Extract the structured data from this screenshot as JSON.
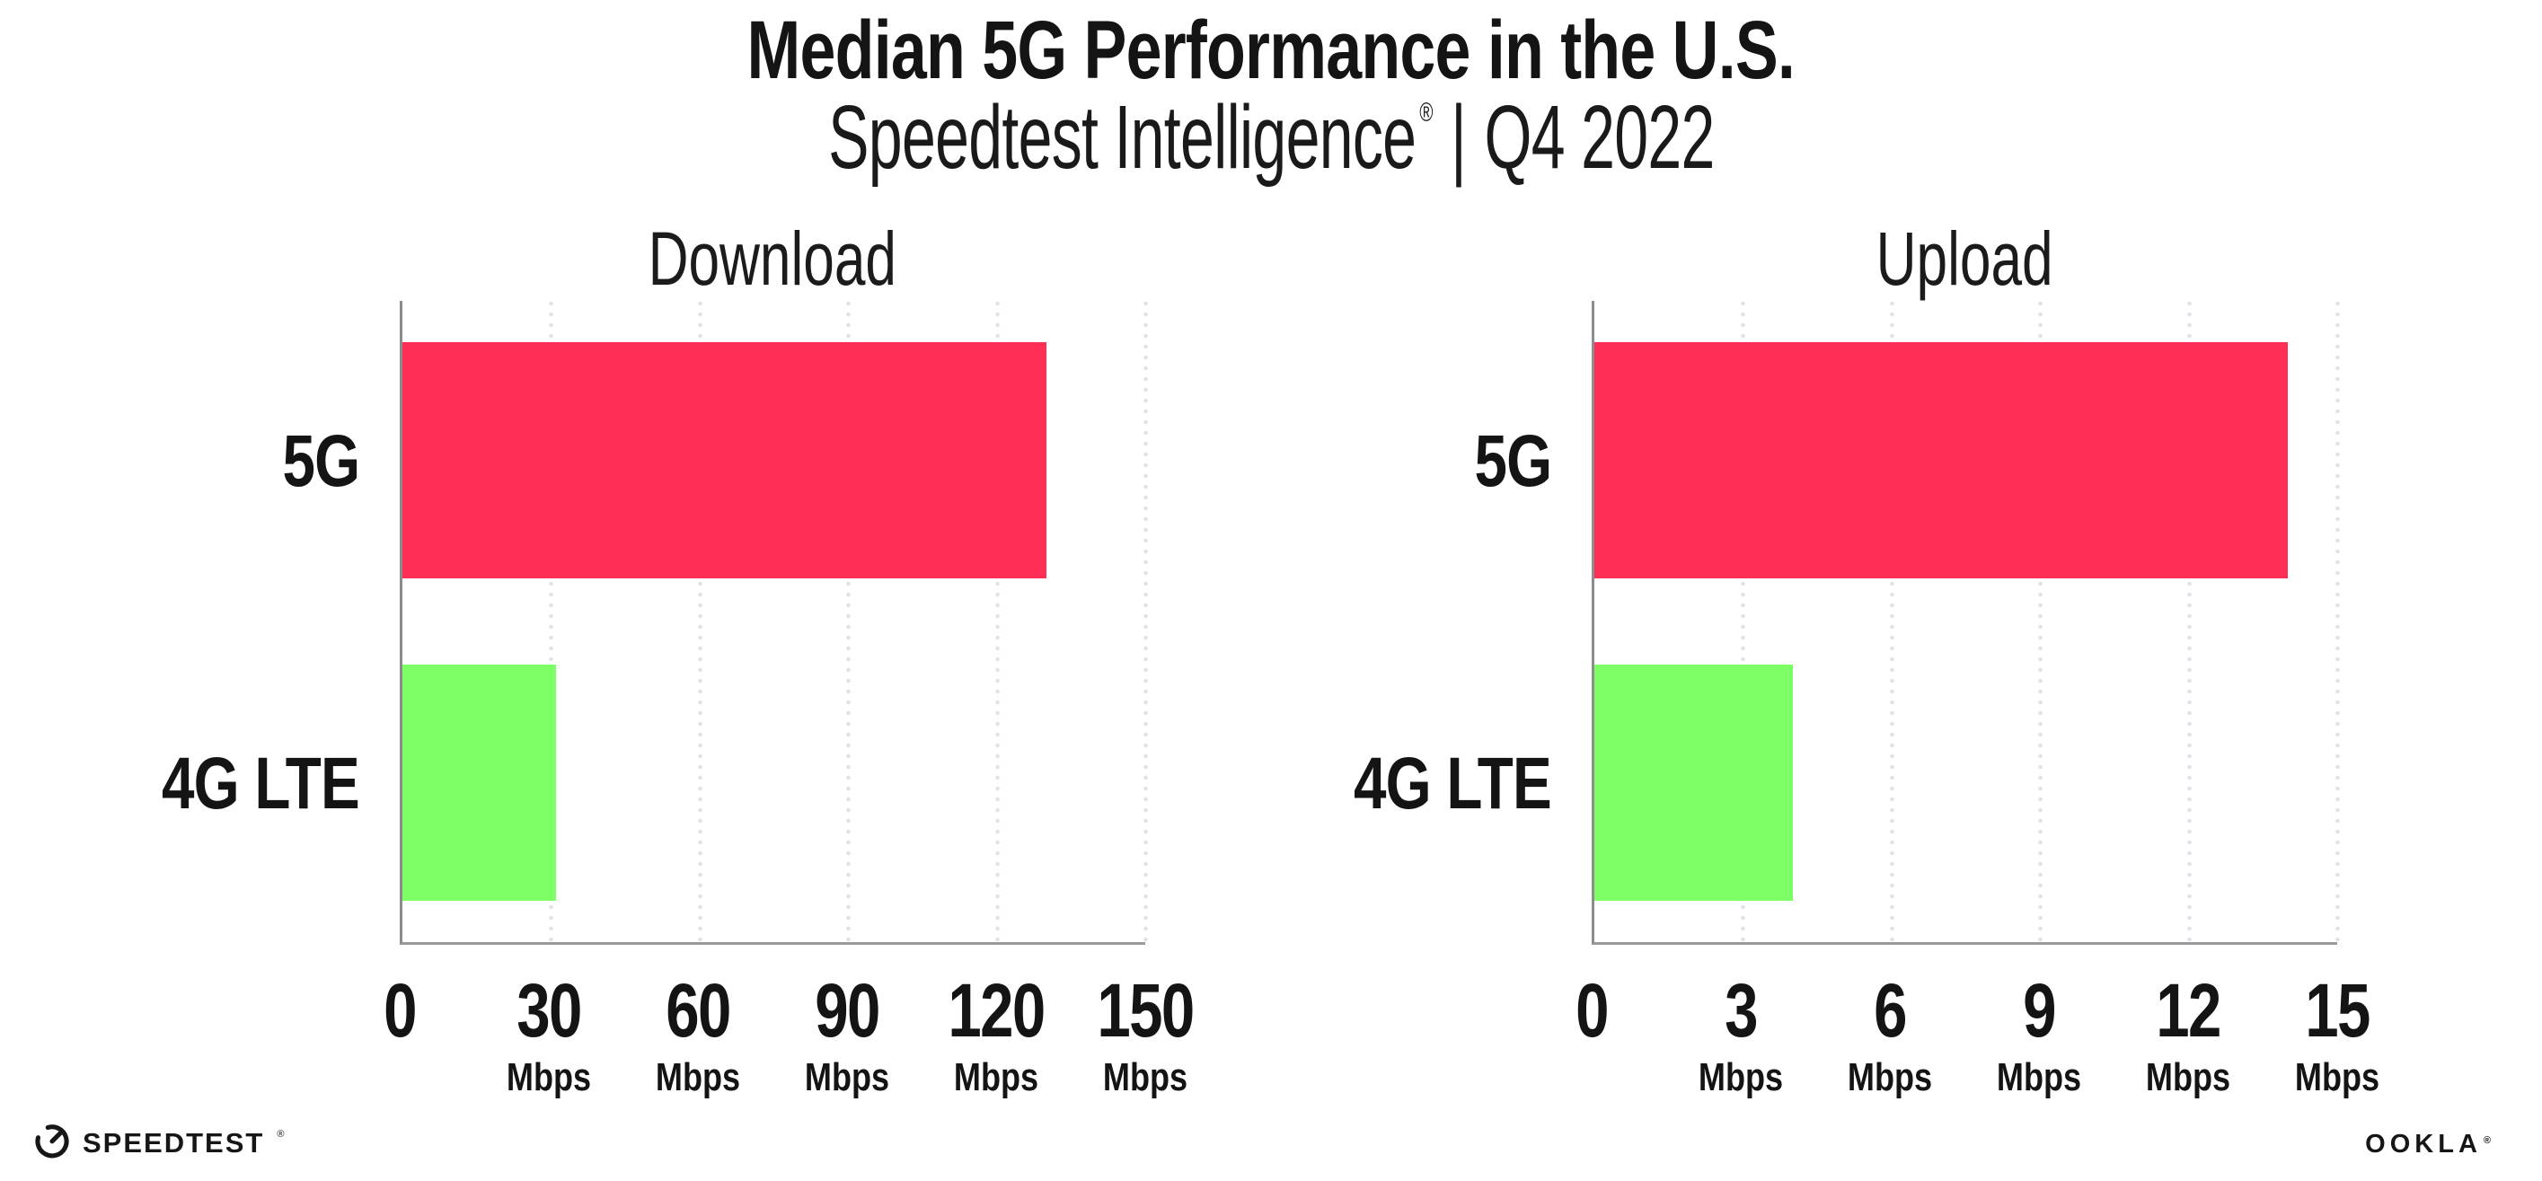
{
  "header": {
    "title": "Median 5G Performance in the U.S.",
    "subtitle": {
      "brand": "Speedtest Intelligence",
      "registered": "®",
      "separator": "|",
      "period": "Q4 2022"
    }
  },
  "chart_data": [
    {
      "type": "bar",
      "orientation": "horizontal",
      "title": "Download",
      "categories": [
        "5G",
        "4G LTE"
      ],
      "values": [
        130,
        31
      ],
      "unit": "Mbps",
      "xlabel": "",
      "ylabel": "",
      "xlim": [
        0,
        150
      ],
      "xticks": [
        0,
        30,
        60,
        90,
        120,
        150
      ],
      "bar_colors": [
        "#FF2E57",
        "#7DFF66"
      ],
      "grid": "vertical-dotted",
      "legend": "none"
    },
    {
      "type": "bar",
      "orientation": "horizontal",
      "title": "Upload",
      "categories": [
        "5G",
        "4G LTE"
      ],
      "values": [
        14,
        4
      ],
      "unit": "Mbps",
      "xlabel": "",
      "ylabel": "",
      "xlim": [
        0,
        15
      ],
      "xticks": [
        0,
        3,
        6,
        9,
        12,
        15
      ],
      "bar_colors": [
        "#FF2E57",
        "#7DFF66"
      ],
      "grid": "vertical-dotted",
      "legend": "none"
    }
  ],
  "colors": {
    "bar_5g": "#FF2E57",
    "bar_4g_lte": "#7DFF66",
    "axis": "#8D8D8D",
    "gridline": "#E1E1EC",
    "text": "#141414"
  },
  "footer": {
    "speedtest": {
      "label": "SPEEDTEST",
      "registered": "®"
    },
    "ookla": {
      "label": "OOKLA",
      "registered": "®"
    }
  }
}
